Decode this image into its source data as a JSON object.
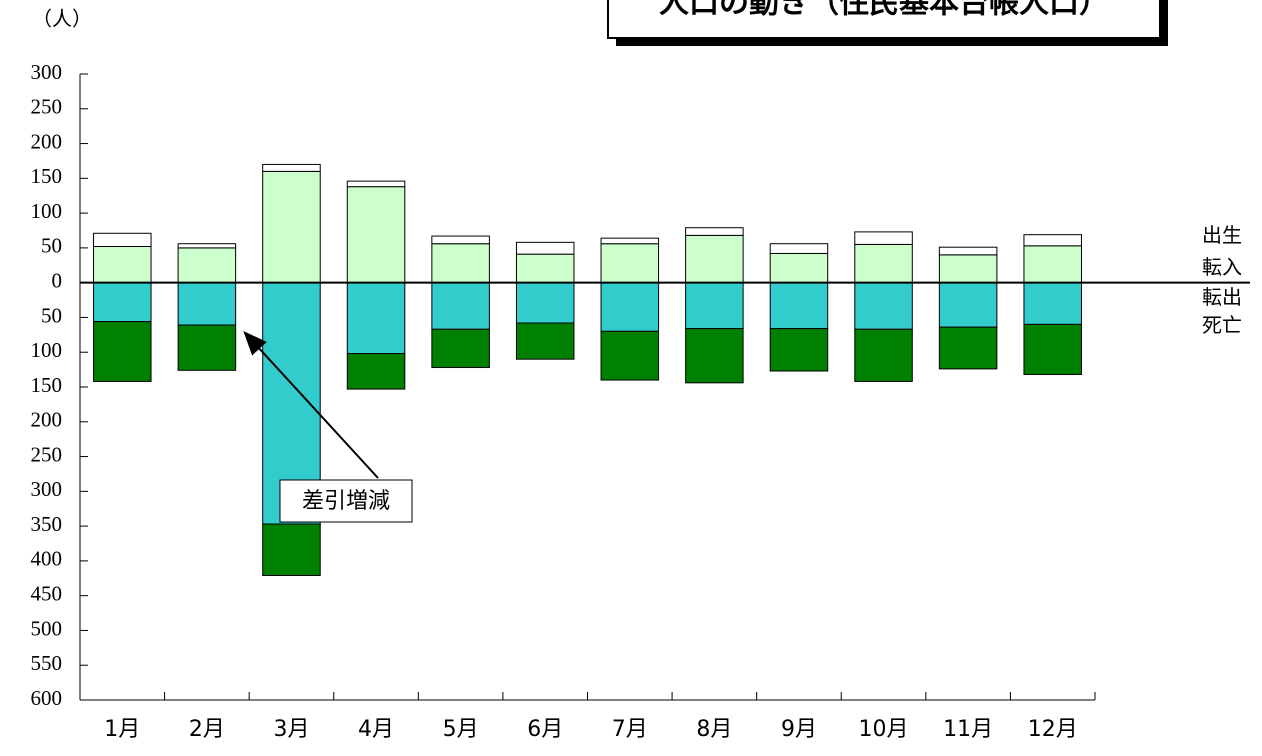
{
  "chart_data": {
    "type": "bar",
    "stacked": true,
    "title": "人口の動き（住民基本台帳人口）",
    "y_label": "（人）",
    "annotation": "差引増減",
    "categories": [
      "1月",
      "2月",
      "3月",
      "4月",
      "5月",
      "6月",
      "7月",
      "8月",
      "9月",
      "10月",
      "11月",
      "12月"
    ],
    "series": [
      {
        "name": "出生",
        "color": "#ffffff",
        "values": [
          19,
          6,
          10,
          8,
          11,
          17,
          8,
          11,
          14,
          18,
          11,
          16
        ]
      },
      {
        "name": "転入",
        "color": "#ccffcc",
        "values": [
          52,
          50,
          160,
          138,
          56,
          41,
          56,
          68,
          42,
          55,
          40,
          53
        ]
      },
      {
        "name": "転出",
        "color": "#33cccc",
        "values": [
          -56,
          -61,
          -347,
          -102,
          -67,
          -58,
          -70,
          -66,
          -66,
          -67,
          -64,
          -60
        ]
      },
      {
        "name": "死亡",
        "color": "#008000",
        "values": [
          -86,
          -65,
          -74,
          -51,
          -55,
          -52,
          -70,
          -78,
          -61,
          -75,
          -60,
          -72
        ]
      }
    ],
    "ylim": [
      -600,
      300
    ],
    "yticks": [
      {
        "value": -600,
        "label": "600"
      },
      {
        "value": -550,
        "label": "550"
      },
      {
        "value": -500,
        "label": "500"
      },
      {
        "value": -450,
        "label": "450"
      },
      {
        "value": -400,
        "label": "400"
      },
      {
        "value": -350,
        "label": "350"
      },
      {
        "value": -300,
        "label": "300"
      },
      {
        "value": -250,
        "label": "250"
      },
      {
        "value": -200,
        "label": "200"
      },
      {
        "value": -150,
        "label": "150"
      },
      {
        "value": -100,
        "label": "100"
      },
      {
        "value": -50,
        "label": "50"
      },
      0,
      50,
      100,
      150,
      200,
      250,
      300
    ],
    "negative_tick_color": "#ff0000",
    "grid": false
  }
}
